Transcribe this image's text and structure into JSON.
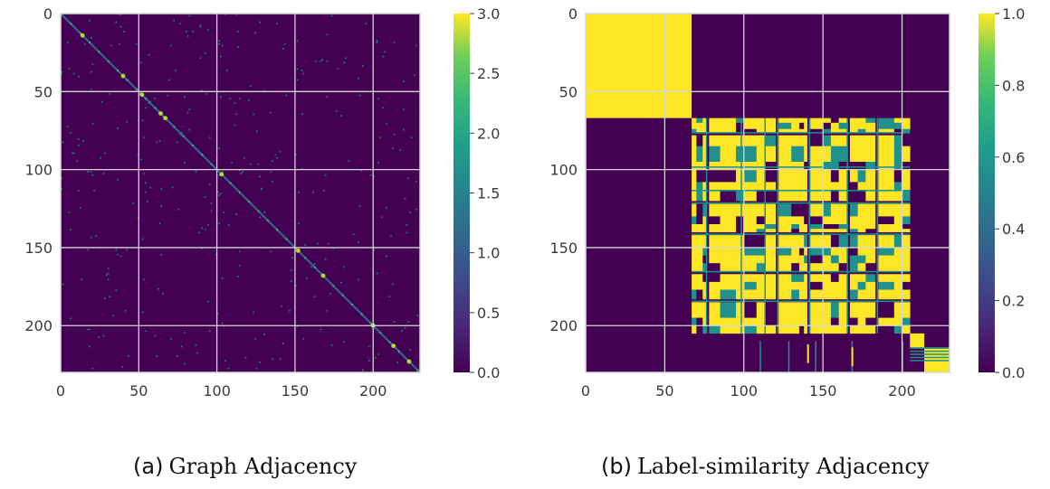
{
  "chart_data": [
    {
      "type": "heatmap",
      "title": "",
      "xlabel": "",
      "ylabel": "",
      "size": 230,
      "x_ticks": [
        0,
        50,
        100,
        150,
        200
      ],
      "y_ticks": [
        0,
        50,
        100,
        150,
        200
      ],
      "xlim": [
        0,
        230
      ],
      "ylim": [
        230,
        0
      ],
      "grid": true,
      "colormap": "viridis",
      "colorbar": {
        "min": 0.0,
        "max": 3.0,
        "ticks": [
          "0.0",
          "0.5",
          "1.0",
          "1.5",
          "2.0",
          "2.5",
          "3.0"
        ]
      },
      "description": "sparse symmetric matrix; diagonal ~1-3, scattered off-diagonal entries ~1",
      "diagonal_bright_points": [
        14,
        40,
        52,
        64,
        67,
        103,
        152,
        168,
        200,
        213,
        223
      ],
      "caption_label": "(a)",
      "caption_text": "Graph Adjacency"
    },
    {
      "type": "heatmap",
      "title": "",
      "xlabel": "",
      "ylabel": "",
      "size": 230,
      "x_ticks": [
        0,
        50,
        100,
        150,
        200
      ],
      "y_ticks": [
        0,
        50,
        100,
        150,
        200
      ],
      "xlim": [
        0,
        230
      ],
      "ylim": [
        230,
        0
      ],
      "grid": true,
      "colormap": "viridis",
      "colorbar": {
        "min": 0.0,
        "max": 1.0,
        "ticks": [
          "0.0",
          "0.2",
          "0.4",
          "0.6",
          "0.8",
          "1.0"
        ]
      },
      "blocks": [
        {
          "range": [
            0,
            67
          ],
          "value": 1.0
        },
        {
          "range": [
            67,
            205
          ],
          "value": 1.0,
          "pattern": "striped"
        },
        {
          "range": [
            214,
            230
          ],
          "value": 1.0
        }
      ],
      "caption_label": "(b)",
      "caption_text": "Label-similarity Adjacency"
    }
  ],
  "colors": {
    "low": "#440154",
    "mid": "#21918c",
    "high": "#fde725",
    "grid": "#d6d6d6"
  }
}
